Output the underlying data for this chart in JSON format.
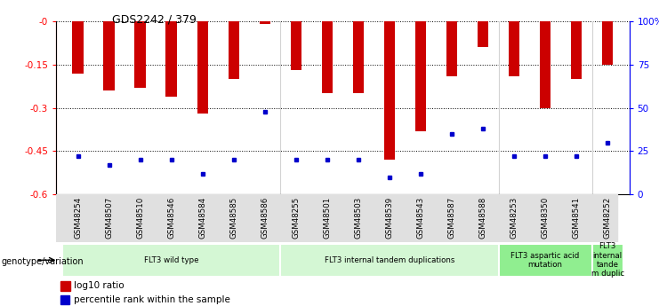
{
  "title": "GDS2242 / 379",
  "samples": [
    "GSM48254",
    "GSM48507",
    "GSM48510",
    "GSM48546",
    "GSM48584",
    "GSM48585",
    "GSM48586",
    "GSM48255",
    "GSM48501",
    "GSM48503",
    "GSM48539",
    "GSM48543",
    "GSM48587",
    "GSM48588",
    "GSM48253",
    "GSM48350",
    "GSM48541",
    "GSM48252"
  ],
  "log10_ratio": [
    -0.18,
    -0.24,
    -0.23,
    -0.26,
    -0.32,
    -0.2,
    -0.01,
    -0.17,
    -0.25,
    -0.25,
    -0.48,
    -0.38,
    -0.19,
    -0.09,
    -0.19,
    -0.3,
    -0.2,
    -0.15
  ],
  "percentile": [
    22,
    17,
    20,
    20,
    12,
    20,
    48,
    20,
    20,
    20,
    10,
    12,
    35,
    38,
    22,
    22,
    22,
    30
  ],
  "bar_color": "#cc0000",
  "percentile_color": "#0000cc",
  "ylim_left": [
    -0.6,
    0.0
  ],
  "ylim_right": [
    0,
    100
  ],
  "yticks_left": [
    -0.6,
    -0.45,
    -0.3,
    -0.15,
    0.0
  ],
  "ytick_labels_left": [
    "-0.6",
    "-0.45",
    "-0.3",
    "-0.15",
    "-0"
  ],
  "yticks_right": [
    0,
    25,
    50,
    75,
    100
  ],
  "ytick_labels_right": [
    "0",
    "25",
    "50",
    "75",
    "100%"
  ],
  "groups": [
    {
      "label": "FLT3 wild type",
      "start": 0,
      "end": 7,
      "color": "#d4f7d4"
    },
    {
      "label": "FLT3 internal tandem duplications",
      "start": 7,
      "end": 14,
      "color": "#d4f7d4"
    },
    {
      "label": "FLT3 aspartic acid\nmutation",
      "start": 14,
      "end": 17,
      "color": "#90ee90"
    },
    {
      "label": "FLT3\ninternal\ntande\nm duplic",
      "start": 17,
      "end": 18,
      "color": "#90ee90"
    }
  ],
  "legend_bar_label": "log10 ratio",
  "legend_pct_label": "percentile rank within the sample",
  "genotype_label": "genotype/variation",
  "bar_width": 0.35
}
